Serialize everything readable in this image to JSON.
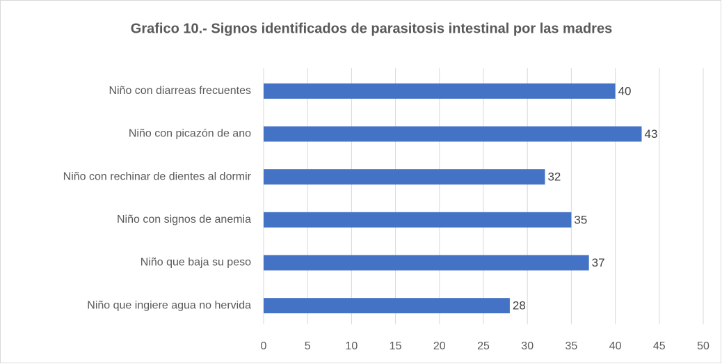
{
  "chart_data": {
    "type": "barh",
    "title": "Grafico 10.- Signos identificados de parasitosis intestinal por las madres",
    "categories": [
      "Niño con diarreas frecuentes",
      "Niño con picazón de ano",
      "Niño con rechinar de dientes al dormir",
      "Niño con signos de anemia",
      "Niño que baja su peso",
      "Niño que ingiere agua no hervida"
    ],
    "values": [
      40,
      43,
      32,
      35,
      37,
      28
    ],
    "color": "#4472c4",
    "xlim": [
      0,
      50
    ],
    "xticks": [
      0,
      5,
      10,
      15,
      20,
      25,
      30,
      35,
      40,
      45,
      50
    ],
    "grid": true
  }
}
